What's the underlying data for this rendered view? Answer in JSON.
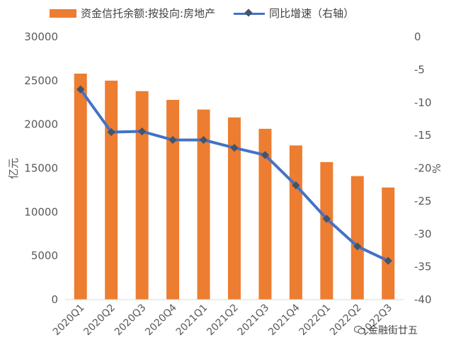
{
  "legend": {
    "bar_label": "资金信托余额:按投向:房地产",
    "line_label": "同比增速（右轴）"
  },
  "watermark": {
    "text": "金融街廿五"
  },
  "colors": {
    "bar": "#ED7D31",
    "line": "#4472C4",
    "marker": "#44546A"
  },
  "chart_data": {
    "type": "bar",
    "categories": [
      "2020Q1",
      "2020Q2",
      "2020Q3",
      "2020Q4",
      "2021Q1",
      "2021Q2",
      "2021Q3",
      "2021Q4",
      "2022Q1",
      "2022Q2",
      "2022Q3"
    ],
    "series": [
      {
        "name": "资金信托余额:按投向:房地产",
        "type": "bar",
        "axis": "left",
        "values": [
          25800,
          25000,
          23800,
          22800,
          21700,
          20800,
          19500,
          17600,
          15700,
          14100,
          12800
        ]
      },
      {
        "name": "同比增速（右轴）",
        "type": "line",
        "axis": "right",
        "values": [
          -8.0,
          -14.5,
          -14.4,
          -15.7,
          -15.7,
          -16.9,
          -18.0,
          -22.6,
          -27.7,
          -31.9,
          -34.1
        ]
      }
    ],
    "ylabel_left": "亿元",
    "ylabel_right": "%",
    "ylim_left": [
      0,
      30000
    ],
    "ylim_right": [
      -40,
      0
    ],
    "yticks_left": [
      "30000",
      "25000",
      "20000",
      "15000",
      "10000",
      "5000",
      "0"
    ],
    "yticks_right": [
      "0",
      "-5",
      "-10",
      "-15",
      "-20",
      "-25",
      "-30",
      "-35",
      "-40"
    ],
    "legend_position": "top",
    "grid": false
  }
}
